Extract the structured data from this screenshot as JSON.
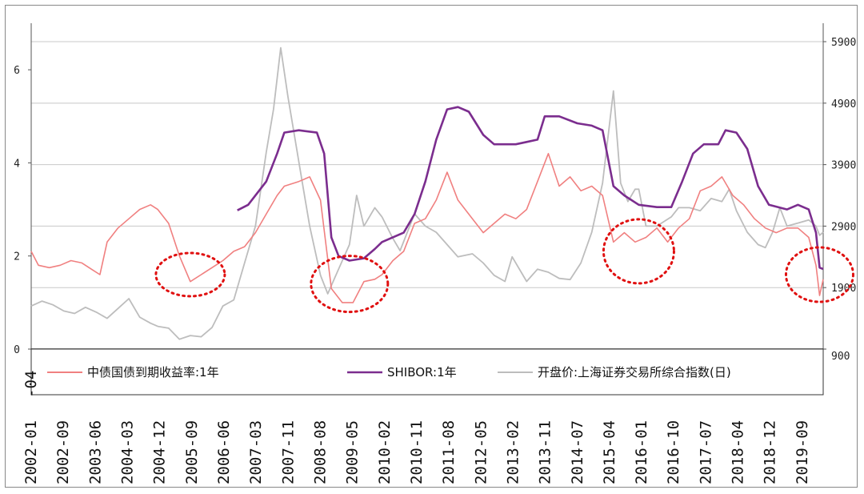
{
  "chart_data": {
    "type": "line",
    "left_axis": {
      "ticks": [
        0,
        2,
        4,
        6
      ],
      "range": [
        0,
        7
      ]
    },
    "right_axis": {
      "ticks": [
        900,
        1900,
        2900,
        3900,
        4900,
        5900
      ],
      "range": [
        900,
        6200
      ]
    },
    "x_axis": {
      "range": [
        "2002-01",
        "2020-04"
      ],
      "tick_labels": [
        "2002-01",
        "2002-09",
        "2003-06",
        "2004-03",
        "2004-12",
        "2005-09",
        "2006-06",
        "2007-03",
        "2007-11",
        "2008-08",
        "2009-05",
        "2010-02",
        "2010-11",
        "2011-08",
        "2012-05",
        "2013-02",
        "2013-11",
        "2014-07",
        "2015-04",
        "2016-01",
        "2016-10",
        "2017-07",
        "2018-04",
        "2018-12",
        "2019-09"
      ]
    },
    "legend": {
      "placement": "bottom"
    },
    "series": [
      {
        "name": "中债国债到期收益率:1年",
        "axis": "left",
        "color": "#f08080",
        "points": [
          [
            "2002-01",
            2.1
          ],
          [
            "2002-03",
            1.8
          ],
          [
            "2002-06",
            1.75
          ],
          [
            "2002-09",
            1.8
          ],
          [
            "2002-12",
            1.9
          ],
          [
            "2003-03",
            1.85
          ],
          [
            "2003-06",
            1.7
          ],
          [
            "2003-08",
            1.6
          ],
          [
            "2003-10",
            2.3
          ],
          [
            "2004-01",
            2.6
          ],
          [
            "2004-04",
            2.8
          ],
          [
            "2004-07",
            3.0
          ],
          [
            "2004-10",
            3.1
          ],
          [
            "2004-12",
            3.0
          ],
          [
            "2005-03",
            2.7
          ],
          [
            "2005-06",
            2.0
          ],
          [
            "2005-09",
            1.45
          ],
          [
            "2005-12",
            1.6
          ],
          [
            "2006-03",
            1.75
          ],
          [
            "2006-06",
            1.9
          ],
          [
            "2006-09",
            2.1
          ],
          [
            "2006-12",
            2.2
          ],
          [
            "2007-03",
            2.5
          ],
          [
            "2007-06",
            2.9
          ],
          [
            "2007-09",
            3.3
          ],
          [
            "2007-11",
            3.5
          ],
          [
            "2008-03",
            3.6
          ],
          [
            "2008-06",
            3.7
          ],
          [
            "2008-09",
            3.2
          ],
          [
            "2008-12",
            1.3
          ],
          [
            "2009-03",
            1.0
          ],
          [
            "2009-06",
            1.0
          ],
          [
            "2009-09",
            1.45
          ],
          [
            "2009-12",
            1.5
          ],
          [
            "2010-02",
            1.6
          ],
          [
            "2010-05",
            1.9
          ],
          [
            "2010-08",
            2.1
          ],
          [
            "2010-11",
            2.7
          ],
          [
            "2011-02",
            2.8
          ],
          [
            "2011-05",
            3.2
          ],
          [
            "2011-08",
            3.8
          ],
          [
            "2011-11",
            3.2
          ],
          [
            "2012-03",
            2.8
          ],
          [
            "2012-06",
            2.5
          ],
          [
            "2012-09",
            2.7
          ],
          [
            "2012-12",
            2.9
          ],
          [
            "2013-03",
            2.8
          ],
          [
            "2013-06",
            3.0
          ],
          [
            "2013-09",
            3.6
          ],
          [
            "2013-12",
            4.2
          ],
          [
            "2014-03",
            3.5
          ],
          [
            "2014-06",
            3.7
          ],
          [
            "2014-09",
            3.4
          ],
          [
            "2014-12",
            3.5
          ],
          [
            "2015-03",
            3.3
          ],
          [
            "2015-06",
            2.3
          ],
          [
            "2015-09",
            2.5
          ],
          [
            "2015-12",
            2.3
          ],
          [
            "2016-03",
            2.4
          ],
          [
            "2016-06",
            2.6
          ],
          [
            "2016-09",
            2.3
          ],
          [
            "2016-12",
            2.6
          ],
          [
            "2017-03",
            2.8
          ],
          [
            "2017-06",
            3.4
          ],
          [
            "2017-09",
            3.5
          ],
          [
            "2017-12",
            3.7
          ],
          [
            "2018-03",
            3.3
          ],
          [
            "2018-06",
            3.1
          ],
          [
            "2018-09",
            2.8
          ],
          [
            "2018-12",
            2.6
          ],
          [
            "2019-03",
            2.5
          ],
          [
            "2019-06",
            2.6
          ],
          [
            "2019-09",
            2.6
          ],
          [
            "2019-12",
            2.4
          ],
          [
            "2020-02",
            1.8
          ],
          [
            "2020-03",
            1.15
          ],
          [
            "2020-04",
            1.5
          ]
        ]
      },
      {
        "name": "SHIBOR:1年",
        "axis": "left",
        "color": "#7b2d8e",
        "points": [
          [
            "2006-10",
            2.98
          ],
          [
            "2007-01",
            3.1
          ],
          [
            "2007-03",
            3.3
          ],
          [
            "2007-06",
            3.6
          ],
          [
            "2007-09",
            4.2
          ],
          [
            "2007-11",
            4.65
          ],
          [
            "2008-03",
            4.7
          ],
          [
            "2008-08",
            4.65
          ],
          [
            "2008-10",
            4.2
          ],
          [
            "2008-12",
            2.4
          ],
          [
            "2009-02",
            2.0
          ],
          [
            "2009-05",
            1.9
          ],
          [
            "2009-09",
            1.95
          ],
          [
            "2009-12",
            2.15
          ],
          [
            "2010-02",
            2.3
          ],
          [
            "2010-08",
            2.5
          ],
          [
            "2010-11",
            2.9
          ],
          [
            "2011-02",
            3.6
          ],
          [
            "2011-05",
            4.5
          ],
          [
            "2011-08",
            5.15
          ],
          [
            "2011-11",
            5.2
          ],
          [
            "2012-02",
            5.1
          ],
          [
            "2012-06",
            4.6
          ],
          [
            "2012-09",
            4.4
          ],
          [
            "2013-03",
            4.4
          ],
          [
            "2013-06",
            4.45
          ],
          [
            "2013-09",
            4.5
          ],
          [
            "2013-11",
            5.0
          ],
          [
            "2014-03",
            5.0
          ],
          [
            "2014-08",
            4.85
          ],
          [
            "2014-12",
            4.8
          ],
          [
            "2015-03",
            4.7
          ],
          [
            "2015-06",
            3.5
          ],
          [
            "2015-09",
            3.3
          ],
          [
            "2016-01",
            3.1
          ],
          [
            "2016-06",
            3.05
          ],
          [
            "2016-10",
            3.05
          ],
          [
            "2017-01",
            3.6
          ],
          [
            "2017-04",
            4.2
          ],
          [
            "2017-07",
            4.4
          ],
          [
            "2017-11",
            4.4
          ],
          [
            "2018-01",
            4.7
          ],
          [
            "2018-04",
            4.65
          ],
          [
            "2018-07",
            4.3
          ],
          [
            "2018-10",
            3.5
          ],
          [
            "2019-01",
            3.1
          ],
          [
            "2019-06",
            3.0
          ],
          [
            "2019-09",
            3.1
          ],
          [
            "2019-12",
            3.0
          ],
          [
            "2020-02",
            2.5
          ],
          [
            "2020-03",
            1.75
          ],
          [
            "2020-04",
            1.72
          ]
        ]
      },
      {
        "name": "开盘价:上海证券交易所综合指数(日)",
        "axis": "right",
        "color": "#bdbdbd",
        "points": [
          [
            "2002-01",
            1600
          ],
          [
            "2002-04",
            1680
          ],
          [
            "2002-07",
            1620
          ],
          [
            "2002-10",
            1520
          ],
          [
            "2003-01",
            1480
          ],
          [
            "2003-04",
            1580
          ],
          [
            "2003-07",
            1500
          ],
          [
            "2003-10",
            1400
          ],
          [
            "2004-01",
            1560
          ],
          [
            "2004-04",
            1720
          ],
          [
            "2004-07",
            1420
          ],
          [
            "2004-10",
            1320
          ],
          [
            "2004-12",
            1270
          ],
          [
            "2005-03",
            1240
          ],
          [
            "2005-06",
            1060
          ],
          [
            "2005-09",
            1120
          ],
          [
            "2005-12",
            1100
          ],
          [
            "2006-03",
            1250
          ],
          [
            "2006-06",
            1600
          ],
          [
            "2006-09",
            1700
          ],
          [
            "2006-12",
            2300
          ],
          [
            "2007-03",
            2900
          ],
          [
            "2007-06",
            4100
          ],
          [
            "2007-08",
            4800
          ],
          [
            "2007-10",
            5800
          ],
          [
            "2007-12",
            5000
          ],
          [
            "2008-02",
            4300
          ],
          [
            "2008-04",
            3600
          ],
          [
            "2008-06",
            2900
          ],
          [
            "2008-09",
            2100
          ],
          [
            "2008-11",
            1800
          ],
          [
            "2009-02",
            2200
          ],
          [
            "2009-05",
            2600
          ],
          [
            "2009-07",
            3400
          ],
          [
            "2009-09",
            2900
          ],
          [
            "2009-12",
            3200
          ],
          [
            "2010-02",
            3050
          ],
          [
            "2010-05",
            2700
          ],
          [
            "2010-07",
            2500
          ],
          [
            "2010-11",
            3100
          ],
          [
            "2011-02",
            2900
          ],
          [
            "2011-05",
            2800
          ],
          [
            "2011-08",
            2600
          ],
          [
            "2011-11",
            2400
          ],
          [
            "2012-03",
            2450
          ],
          [
            "2012-06",
            2300
          ],
          [
            "2012-09",
            2100
          ],
          [
            "2012-12",
            2000
          ],
          [
            "2013-02",
            2400
          ],
          [
            "2013-06",
            2000
          ],
          [
            "2013-09",
            2200
          ],
          [
            "2013-12",
            2150
          ],
          [
            "2014-03",
            2050
          ],
          [
            "2014-06",
            2030
          ],
          [
            "2014-09",
            2300
          ],
          [
            "2014-12",
            2800
          ],
          [
            "2015-03",
            3600
          ],
          [
            "2015-06",
            5100
          ],
          [
            "2015-08",
            3600
          ],
          [
            "2015-10",
            3300
          ],
          [
            "2015-12",
            3500
          ],
          [
            "2016-01",
            3500
          ],
          [
            "2016-03",
            2900
          ],
          [
            "2016-06",
            2900
          ],
          [
            "2016-10",
            3050
          ],
          [
            "2016-12",
            3200
          ],
          [
            "2017-03",
            3200
          ],
          [
            "2017-06",
            3150
          ],
          [
            "2017-09",
            3350
          ],
          [
            "2017-12",
            3300
          ],
          [
            "2018-02",
            3500
          ],
          [
            "2018-04",
            3150
          ],
          [
            "2018-07",
            2800
          ],
          [
            "2018-10",
            2600
          ],
          [
            "2018-12",
            2550
          ],
          [
            "2019-02",
            2800
          ],
          [
            "2019-04",
            3200
          ],
          [
            "2019-06",
            2900
          ],
          [
            "2019-09",
            2950
          ],
          [
            "2019-12",
            3000
          ],
          [
            "2020-02",
            2900
          ],
          [
            "2020-03",
            2750
          ],
          [
            "2020-04",
            2800
          ]
        ]
      }
    ],
    "annotations": [
      {
        "shape": "dotted-ellipse",
        "color": "#e01010",
        "at": [
          "2005-09",
          1.6
        ],
        "axis": "left"
      },
      {
        "shape": "dotted-ellipse",
        "color": "#e01010",
        "at": [
          "2009-05",
          1.4
        ],
        "axis": "left"
      },
      {
        "shape": "dotted-ellipse",
        "color": "#e01010",
        "at": [
          "2016-01",
          2.1
        ],
        "axis": "left"
      },
      {
        "shape": "dotted-ellipse",
        "color": "#e01010",
        "at": [
          "2020-03",
          1.6
        ],
        "axis": "left"
      }
    ]
  }
}
